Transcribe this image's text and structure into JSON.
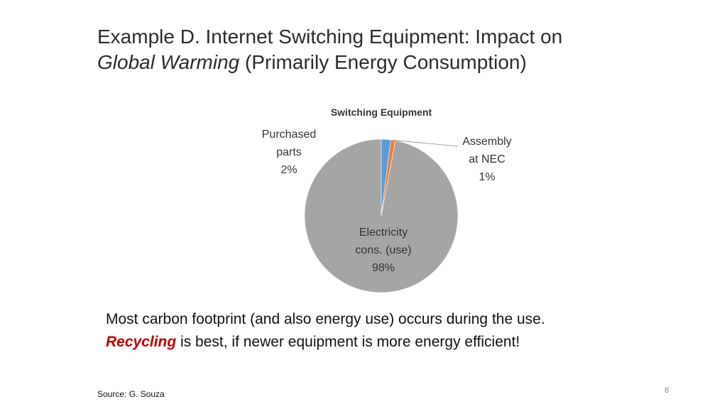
{
  "slide": {
    "title_prefix": "Example D. ",
    "title_emphasis": "Internet Switching Equipment",
    "title_mid": ": Impact on",
    "title_italic": "Global Warming",
    "title_suffix": " (Primarily Energy Consumption)",
    "body_line1": "Most carbon footprint (and also energy use) occurs during the use.",
    "body_recycling": "Recycling",
    "body_line2_rest": " is best, if newer equipment is more energy efficient!",
    "source": "Source: G. Souza",
    "page_number": "8",
    "accent_color": "#c00000"
  },
  "chart_data": {
    "type": "pie",
    "title": "Switching Equipment",
    "categories": [
      "Purchased parts",
      "Assembly at NEC",
      "Electricity cons. (use)"
    ],
    "values": [
      2,
      1,
      98
    ],
    "series": [
      {
        "name": "",
        "values": [
          2,
          1,
          98
        ]
      }
    ],
    "slices": [
      {
        "label_lines": [
          "Purchased",
          "parts"
        ],
        "percent_label": "2%",
        "value": 2,
        "color": "#5b9bd5"
      },
      {
        "label_lines": [
          "Assembly",
          "at NEC"
        ],
        "percent_label": "1%",
        "value": 1,
        "color": "#ed7d31"
      },
      {
        "label_lines": [
          "Electricity",
          "cons. (use)"
        ],
        "percent_label": "98%",
        "value": 98,
        "color": "#a5a5a5"
      }
    ],
    "legend": "none",
    "grid": false
  }
}
